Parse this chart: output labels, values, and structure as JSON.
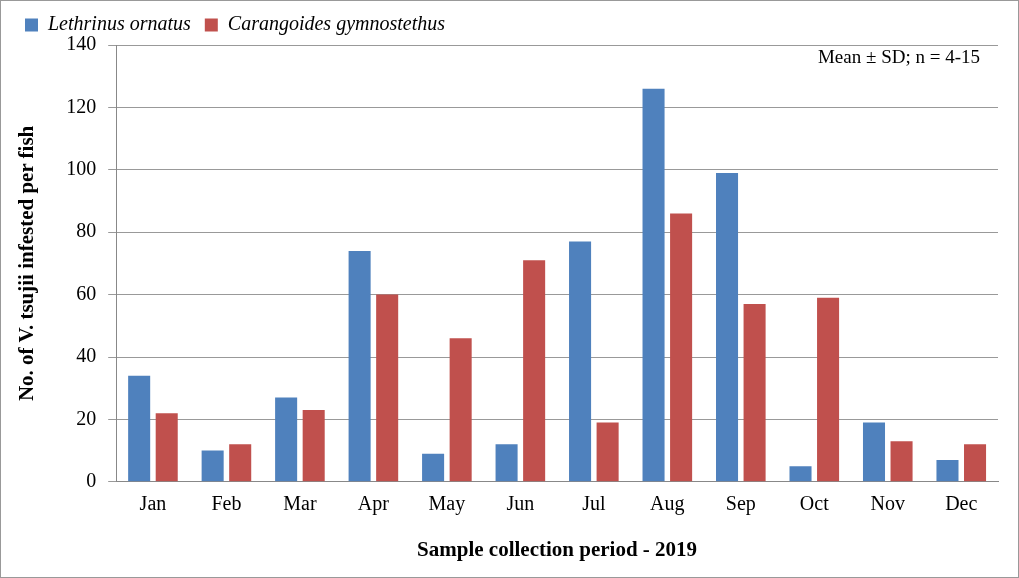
{
  "chart_data": {
    "type": "bar",
    "xlabel": "Sample collection period - 2019",
    "ylabel": "No. of V. tsujii infested per fish",
    "categories": [
      "Jan",
      "Feb",
      "Mar",
      "Apr",
      "May",
      "Jun",
      "Jul",
      "Aug",
      "Sep",
      "Oct",
      "Nov",
      "Dec"
    ],
    "series": [
      {
        "name": "Lethrinus ornatus",
        "color": "#4f81bd",
        "values": [
          34,
          10,
          27,
          74,
          9,
          12,
          77,
          126,
          99,
          5,
          19,
          7
        ]
      },
      {
        "name": "Carangoides gymnostethus",
        "color": "#c0504d",
        "values": [
          22,
          12,
          23,
          60,
          46,
          71,
          19,
          86,
          57,
          59,
          13,
          12
        ]
      }
    ],
    "ylim": [
      0,
      140
    ],
    "yticks": [
      0,
      20,
      40,
      60,
      80,
      100,
      120,
      140
    ],
    "grid": "y",
    "legend": "top left",
    "annotations": [
      "Mean ± SD; n = 4-15"
    ]
  }
}
